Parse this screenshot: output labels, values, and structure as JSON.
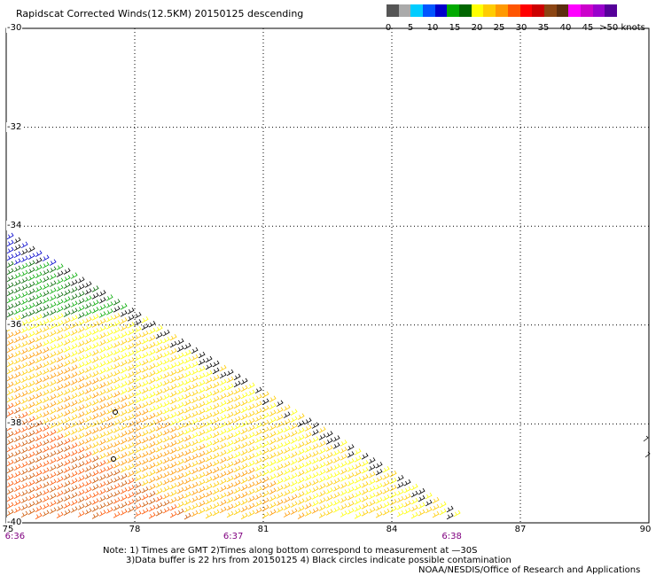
{
  "title": "Rapidscat Corrected Winds(12.5KM) 20150125 descending",
  "color_scale": {
    "colors": [
      "#555555",
      "#aaaaaa",
      "#00ccff",
      "#0055ff",
      "#0000cc",
      "#00aa00",
      "#006600",
      "#ffff00",
      "#ffcc00",
      "#ff9900",
      "#ff5500",
      "#ff0000",
      "#cc0000",
      "#8b4513",
      "#5c2e0e",
      "#ff00ff",
      "#cc00cc",
      "#9900cc",
      "#550099"
    ],
    "labels": [
      {
        "text": "0",
        "value": 0
      },
      {
        "text": "5",
        "value": 5
      },
      {
        "text": "10",
        "value": 10
      },
      {
        "text": "15",
        "value": 15
      },
      {
        "text": "20",
        "value": 20
      },
      {
        "text": "25",
        "value": 25
      },
      {
        "text": "30",
        "value": 30
      },
      {
        "text": "35",
        "value": 35
      },
      {
        "text": "40",
        "value": 40
      },
      {
        "text": "45",
        "value": 45
      },
      {
        "text": ">50 knots",
        "value": 50
      }
    ]
  },
  "map_extent": {
    "lon_min": 75,
    "lon_max": 90,
    "lat_min": -40,
    "lat_max": -30
  },
  "lat_labels": [
    "-30",
    "-32",
    "-34",
    "-36",
    "-38",
    "-40"
  ],
  "lon_labels": [
    "75",
    "78",
    "81",
    "84",
    "87",
    "90"
  ],
  "time_labels": [
    {
      "text": "6:36",
      "lon": 75.1
    },
    {
      "text": "6:37",
      "lon": 80.3
    },
    {
      "text": "6:38",
      "lon": 85.4
    }
  ],
  "notes": {
    "line1": "Note: 1) Times are GMT 2)Times along bottom correspond to measurement at —30S",
    "line2": "3)Data buffer is 22 hrs from 20150125 4) Black circles indicate possible contamination",
    "credit": "NOAA/NESDIS/Office of Research and Applications"
  }
}
